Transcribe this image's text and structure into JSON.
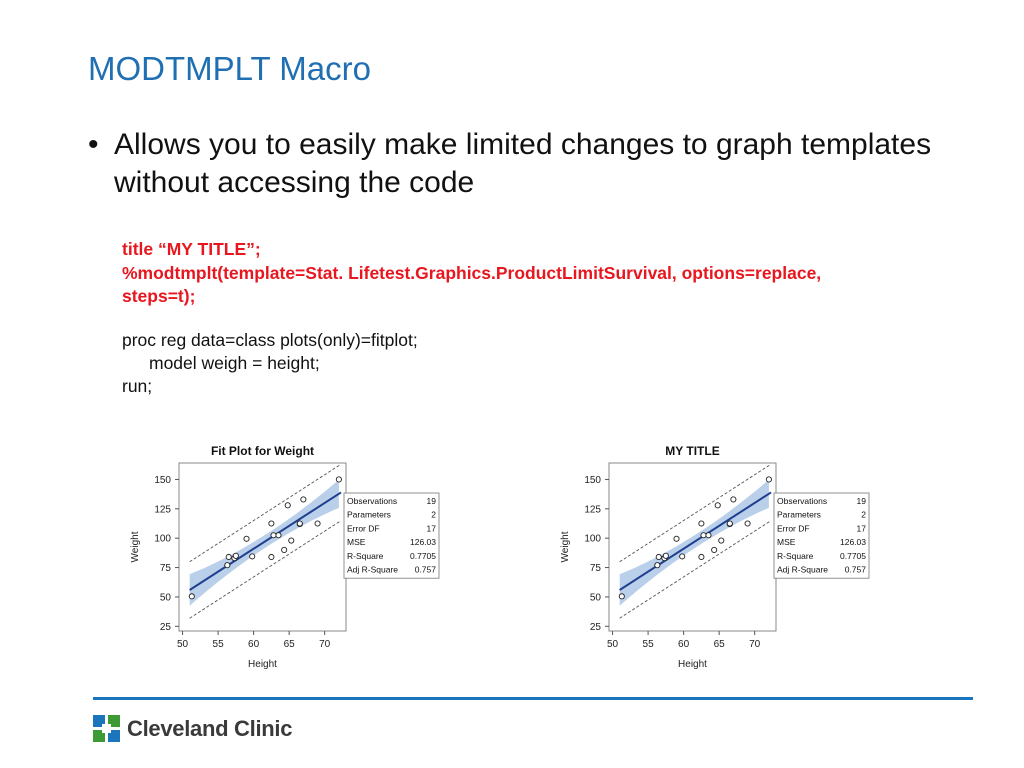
{
  "slide": {
    "title": "MODTMPLT Macro",
    "bullet": "Allows you to easily make limited changes to graph templates without accessing the code"
  },
  "code": {
    "red_lines": [
      "title “MY TITLE”;",
      "%modtmplt(template=Stat. Lifetest.Graphics.ProductLimitSurvival, options=replace,",
      "steps=t);"
    ],
    "black_lines": [
      "proc reg data=class plots(only)=fitplot;",
      "model weigh = height;",
      "run;"
    ]
  },
  "footer": {
    "logo_text": "Cleveland Clinic"
  },
  "colors": {
    "title": "#1f6fb2",
    "code_red": "#e8161e",
    "rule": "#1b75bc",
    "logo_green": "#3d9b35",
    "logo_blue": "#1b75bc",
    "fit_line": "#1f3f8f",
    "band": "#b9cfea"
  },
  "chart_data": [
    {
      "type": "scatter",
      "title": "Fit Plot for Weight",
      "xlabel": "Height",
      "ylabel": "Weight",
      "xlim": [
        49.5,
        73
      ],
      "ylim": [
        21,
        164
      ],
      "xticks": [
        50,
        55,
        60,
        65,
        70
      ],
      "yticks": [
        25,
        50,
        75,
        100,
        125,
        150
      ],
      "points": [
        [
          51.3,
          50.5
        ],
        [
          56.3,
          77
        ],
        [
          56.5,
          84
        ],
        [
          57.3,
          83
        ],
        [
          57.5,
          85
        ],
        [
          59,
          99.5
        ],
        [
          59.8,
          84.5
        ],
        [
          62.5,
          84
        ],
        [
          62.5,
          112.5
        ],
        [
          62.8,
          102.5
        ],
        [
          63.5,
          102.5
        ],
        [
          64.3,
          90
        ],
        [
          64.8,
          128
        ],
        [
          65.3,
          98
        ],
        [
          66.5,
          112
        ],
        [
          66.5,
          112.5
        ],
        [
          67,
          133
        ],
        [
          69,
          112.5
        ],
        [
          72,
          150
        ]
      ],
      "fit": {
        "intercept": -143,
        "slope": 3.9
      },
      "stats_table": [
        [
          "Observations",
          "19"
        ],
        [
          "Parameters",
          "2"
        ],
        [
          "Error DF",
          "17"
        ],
        [
          "MSE",
          "126.03"
        ],
        [
          "R-Square",
          "0.7705"
        ],
        [
          "Adj R-Square",
          "0.757"
        ]
      ]
    },
    {
      "type": "scatter",
      "title": "MY TITLE",
      "xlabel": "Height",
      "ylabel": "Weight",
      "xlim": [
        49.5,
        73
      ],
      "ylim": [
        21,
        164
      ],
      "xticks": [
        50,
        55,
        60,
        65,
        70
      ],
      "yticks": [
        25,
        50,
        75,
        100,
        125,
        150
      ],
      "points": [
        [
          51.3,
          50.5
        ],
        [
          56.3,
          77
        ],
        [
          56.5,
          84
        ],
        [
          57.3,
          83
        ],
        [
          57.5,
          85
        ],
        [
          59,
          99.5
        ],
        [
          59.8,
          84.5
        ],
        [
          62.5,
          84
        ],
        [
          62.5,
          112.5
        ],
        [
          62.8,
          102.5
        ],
        [
          63.5,
          102.5
        ],
        [
          64.3,
          90
        ],
        [
          64.8,
          128
        ],
        [
          65.3,
          98
        ],
        [
          66.5,
          112
        ],
        [
          66.5,
          112.5
        ],
        [
          67,
          133
        ],
        [
          69,
          112.5
        ],
        [
          72,
          150
        ]
      ],
      "fit": {
        "intercept": -143,
        "slope": 3.9
      },
      "stats_table": [
        [
          "Observations",
          "19"
        ],
        [
          "Parameters",
          "2"
        ],
        [
          "Error DF",
          "17"
        ],
        [
          "MSE",
          "126.03"
        ],
        [
          "R-Square",
          "0.7705"
        ],
        [
          "Adj R-Square",
          "0.757"
        ]
      ]
    }
  ]
}
